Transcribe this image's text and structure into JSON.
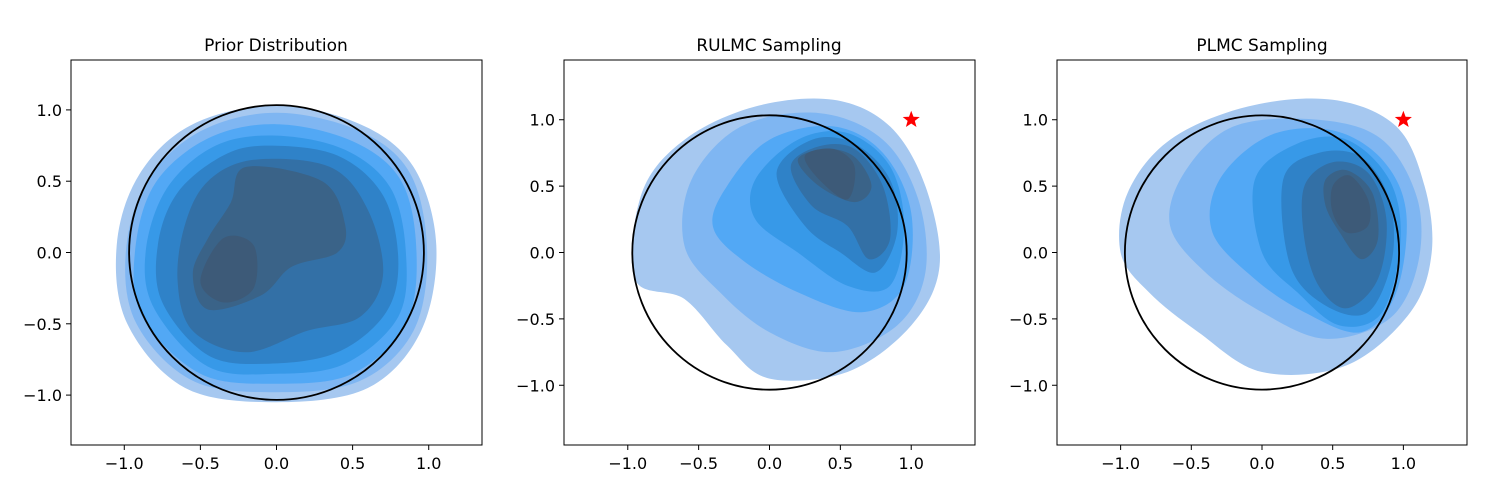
{
  "chart_data": [
    {
      "type": "kde-contour",
      "title": "Prior Distribution",
      "xlim": [
        -1.35,
        1.35
      ],
      "ylim": [
        -1.35,
        1.35
      ],
      "xticks": [
        "−1.0",
        "−0.5",
        "0.0",
        "0.5",
        "1.0"
      ],
      "yticks": [
        "−1.0",
        "−0.5",
        "0.0",
        "0.5",
        "1.0"
      ],
      "xtick_values": [
        -1.0,
        -0.5,
        0.0,
        0.5,
        1.0
      ],
      "ytick_values": [
        -1.0,
        -0.5,
        0.0,
        0.5,
        1.0
      ],
      "unit_circle": {
        "cx": 0,
        "cy": 0,
        "r": 1
      },
      "target_marker": null,
      "density_modes": [
        [
          -0.3,
          -0.05
        ],
        [
          0.35,
          0.25
        ],
        [
          -0.25,
          -0.55
        ],
        [
          0.55,
          -0.2
        ],
        [
          -0.15,
          0.5
        ]
      ]
    },
    {
      "type": "kde-contour",
      "title": "RULMC Sampling",
      "xlim": [
        -1.45,
        1.45
      ],
      "ylim": [
        -1.45,
        1.45
      ],
      "xticks": [
        "−1.0",
        "−0.5",
        "0.0",
        "0.5",
        "1.0"
      ],
      "yticks": [
        "−1.0",
        "−0.5",
        "0.0",
        "0.5",
        "1.0"
      ],
      "xtick_values": [
        -1.0,
        -0.5,
        0.0,
        0.5,
        1.0
      ],
      "ytick_values": [
        -1.0,
        -0.5,
        0.0,
        0.5,
        1.0
      ],
      "unit_circle": {
        "cx": 0,
        "cy": 0,
        "r": 1
      },
      "target_marker": {
        "x": 1.0,
        "y": 1.0,
        "shape": "star",
        "color": "#ff0000"
      },
      "density_modes": [
        [
          0.35,
          0.6
        ],
        [
          0.7,
          0.05
        ]
      ]
    },
    {
      "type": "kde-contour",
      "title": "PLMC Sampling",
      "xlim": [
        -1.45,
        1.45
      ],
      "ylim": [
        -1.45,
        1.45
      ],
      "xticks": [
        "−1.0",
        "−0.5",
        "0.0",
        "0.5",
        "1.0"
      ],
      "yticks": [
        "−1.0",
        "−0.5",
        "0.0",
        "0.5",
        "1.0"
      ],
      "xtick_values": [
        -1.0,
        -0.5,
        0.0,
        0.5,
        1.0
      ],
      "ytick_values": [
        -1.0,
        -0.5,
        0.0,
        0.5,
        1.0
      ],
      "unit_circle": {
        "cx": 0,
        "cy": 0,
        "r": 1
      },
      "target_marker": {
        "x": 1.0,
        "y": 1.0,
        "shape": "star",
        "color": "#ff0000"
      },
      "density_modes": [
        [
          0.55,
          0.3
        ],
        [
          0.5,
          -0.3
        ]
      ]
    }
  ],
  "colors": {
    "level1": "#a6c8f0",
    "level2": "#7fb6f2",
    "level3": "#52a8f5",
    "level4": "#3799e8",
    "level5": "#2f82c8",
    "level6": "#3370a6",
    "level7": "#3a6388",
    "level8": "#3d5a78",
    "circle": "#000000",
    "star": "#ff0000"
  }
}
